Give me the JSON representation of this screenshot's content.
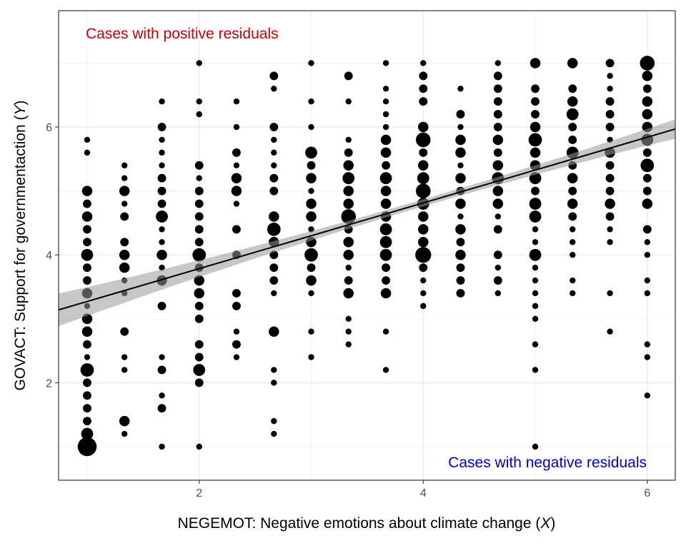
{
  "chart_data": {
    "type": "scatter",
    "title": "",
    "xlabel": {
      "prefix": "NEGEMOT: Negative emotions about climate change (",
      "var": "X",
      "suffix": ")"
    },
    "ylabel": {
      "prefix": "GOVACT: Support for governmentaction (",
      "var": "Y",
      "suffix": ")"
    },
    "xlim": [
      0.745,
      6.25
    ],
    "ylim": [
      0.475,
      7.82
    ],
    "x_ticks": [
      2,
      4,
      6
    ],
    "y_ticks": [
      2,
      4,
      6
    ],
    "x_tick_labels": [
      "2",
      "4",
      "6"
    ],
    "y_tick_labels": [
      "2",
      "4",
      "6"
    ],
    "grid": true,
    "point_size_encodes": "count",
    "point_color": "#000000",
    "regression_line": {
      "intercept": 2.757,
      "slope": 0.514,
      "color": "#000000",
      "confidence_band": true,
      "band_color": "#999999"
    },
    "annotations": [
      {
        "text": "Cases with positive residuals",
        "color": "#cc0000",
        "placement": "top-left"
      },
      {
        "text": "Cases with negative residuals",
        "color": "#0000cc",
        "placement": "bottom-right"
      }
    ],
    "columns": [
      {
        "x": 1,
        "points": [
          [
            5.8,
            1
          ],
          [
            5.6,
            1
          ],
          [
            5.0,
            3
          ],
          [
            4.8,
            2
          ],
          [
            4.6,
            3
          ],
          [
            4.4,
            2
          ],
          [
            4.2,
            2
          ],
          [
            4.0,
            4
          ],
          [
            3.8,
            2
          ],
          [
            3.6,
            2
          ],
          [
            3.4,
            3
          ],
          [
            3.2,
            1
          ],
          [
            3.0,
            3
          ],
          [
            2.8,
            3
          ],
          [
            2.6,
            2
          ],
          [
            2.4,
            1
          ],
          [
            2.2,
            5
          ],
          [
            2.0,
            2
          ],
          [
            1.8,
            2
          ],
          [
            1.6,
            2
          ],
          [
            1.4,
            2
          ],
          [
            1.2,
            4
          ],
          [
            1.0,
            10
          ]
        ]
      },
      {
        "x": 1.333,
        "points": [
          [
            5.4,
            1
          ],
          [
            5.2,
            1
          ],
          [
            5.0,
            3
          ],
          [
            4.8,
            1
          ],
          [
            4.6,
            2
          ],
          [
            4.2,
            2
          ],
          [
            4.0,
            3
          ],
          [
            3.8,
            3
          ],
          [
            3.6,
            1
          ],
          [
            3.4,
            1
          ],
          [
            2.8,
            2
          ],
          [
            2.4,
            1
          ],
          [
            2.2,
            1
          ],
          [
            1.4,
            3
          ],
          [
            1.2,
            1
          ]
        ]
      },
      {
        "x": 1.667,
        "points": [
          [
            6.4,
            1
          ],
          [
            6.0,
            2
          ],
          [
            5.8,
            1
          ],
          [
            5.6,
            1
          ],
          [
            5.4,
            1
          ],
          [
            5.2,
            2
          ],
          [
            5.0,
            2
          ],
          [
            4.8,
            2
          ],
          [
            4.6,
            4
          ],
          [
            4.4,
            1
          ],
          [
            4.2,
            1
          ],
          [
            4.0,
            3
          ],
          [
            3.8,
            1
          ],
          [
            3.6,
            3
          ],
          [
            3.2,
            2
          ],
          [
            2.4,
            1
          ],
          [
            2.2,
            2
          ],
          [
            1.8,
            1
          ],
          [
            1.6,
            2
          ],
          [
            1.0,
            1
          ]
        ]
      },
      {
        "x": 2,
        "points": [
          [
            7.0,
            1
          ],
          [
            6.4,
            1
          ],
          [
            6.2,
            1
          ],
          [
            5.4,
            2
          ],
          [
            5.2,
            1
          ],
          [
            5.0,
            2
          ],
          [
            4.8,
            2
          ],
          [
            4.6,
            2
          ],
          [
            4.4,
            2
          ],
          [
            4.2,
            2
          ],
          [
            4.0,
            5
          ],
          [
            3.8,
            2
          ],
          [
            3.6,
            3
          ],
          [
            3.4,
            3
          ],
          [
            3.2,
            2
          ],
          [
            3.0,
            2
          ],
          [
            2.6,
            2
          ],
          [
            2.4,
            2
          ],
          [
            2.2,
            4
          ],
          [
            2.0,
            2
          ],
          [
            1.0,
            1
          ]
        ]
      },
      {
        "x": 2.333,
        "points": [
          [
            6.4,
            1
          ],
          [
            6.0,
            1
          ],
          [
            5.6,
            2
          ],
          [
            5.4,
            1
          ],
          [
            5.2,
            3
          ],
          [
            5.0,
            3
          ],
          [
            4.8,
            1
          ],
          [
            4.4,
            2
          ],
          [
            4.0,
            2
          ],
          [
            3.4,
            2
          ],
          [
            3.2,
            2
          ],
          [
            2.8,
            1
          ],
          [
            2.6,
            2
          ],
          [
            2.4,
            1
          ]
        ]
      },
      {
        "x": 2.667,
        "points": [
          [
            6.8,
            2
          ],
          [
            6.6,
            1
          ],
          [
            6.0,
            2
          ],
          [
            5.8,
            1
          ],
          [
            5.6,
            1
          ],
          [
            5.4,
            1
          ],
          [
            5.2,
            2
          ],
          [
            5.0,
            2
          ],
          [
            4.6,
            3
          ],
          [
            4.4,
            5
          ],
          [
            4.2,
            3
          ],
          [
            4.0,
            2
          ],
          [
            3.8,
            2
          ],
          [
            3.6,
            2
          ],
          [
            3.4,
            1
          ],
          [
            2.8,
            3
          ],
          [
            2.2,
            1
          ],
          [
            2.0,
            1
          ],
          [
            1.4,
            1
          ],
          [
            1.2,
            1
          ]
        ]
      },
      {
        "x": 3,
        "points": [
          [
            7.0,
            1
          ],
          [
            6.4,
            1
          ],
          [
            6.0,
            1
          ],
          [
            5.6,
            4
          ],
          [
            5.4,
            2
          ],
          [
            5.2,
            3
          ],
          [
            5.0,
            1
          ],
          [
            4.8,
            3
          ],
          [
            4.6,
            3
          ],
          [
            4.4,
            1
          ],
          [
            4.2,
            3
          ],
          [
            4.0,
            5
          ],
          [
            3.8,
            2
          ],
          [
            3.6,
            3
          ],
          [
            3.4,
            1
          ],
          [
            2.8,
            1
          ],
          [
            2.4,
            1
          ]
        ]
      },
      {
        "x": 3.333,
        "points": [
          [
            6.8,
            2
          ],
          [
            6.4,
            1
          ],
          [
            5.8,
            1
          ],
          [
            5.6,
            2
          ],
          [
            5.4,
            3
          ],
          [
            5.2,
            4
          ],
          [
            5.0,
            3
          ],
          [
            4.8,
            3
          ],
          [
            4.6,
            6
          ],
          [
            4.4,
            2
          ],
          [
            4.2,
            3
          ],
          [
            4.0,
            3
          ],
          [
            3.8,
            1
          ],
          [
            3.6,
            2
          ],
          [
            3.4,
            3
          ],
          [
            3.0,
            1
          ],
          [
            2.8,
            1
          ],
          [
            2.6,
            1
          ]
        ]
      },
      {
        "x": 3.667,
        "points": [
          [
            7.0,
            1
          ],
          [
            6.6,
            1
          ],
          [
            6.4,
            1
          ],
          [
            6.2,
            1
          ],
          [
            6.0,
            1
          ],
          [
            5.8,
            3
          ],
          [
            5.6,
            3
          ],
          [
            5.4,
            2
          ],
          [
            5.2,
            4
          ],
          [
            5.0,
            3
          ],
          [
            4.8,
            3
          ],
          [
            4.6,
            3
          ],
          [
            4.4,
            4
          ],
          [
            4.2,
            4
          ],
          [
            4.0,
            4
          ],
          [
            3.8,
            2
          ],
          [
            3.6,
            2
          ],
          [
            3.4,
            3
          ],
          [
            2.8,
            1
          ],
          [
            2.2,
            1
          ]
        ]
      },
      {
        "x": 4,
        "points": [
          [
            7.0,
            1
          ],
          [
            6.8,
            2
          ],
          [
            6.6,
            2
          ],
          [
            6.4,
            2
          ],
          [
            6.0,
            3
          ],
          [
            5.8,
            6
          ],
          [
            5.6,
            2
          ],
          [
            5.4,
            3
          ],
          [
            5.2,
            4
          ],
          [
            5.0,
            6
          ],
          [
            4.8,
            4
          ],
          [
            4.6,
            3
          ],
          [
            4.4,
            3
          ],
          [
            4.2,
            3
          ],
          [
            4.0,
            7
          ],
          [
            3.8,
            2
          ],
          [
            3.6,
            1
          ],
          [
            3.4,
            1
          ],
          [
            3.2,
            1
          ]
        ]
      },
      {
        "x": 4.333,
        "points": [
          [
            6.6,
            1
          ],
          [
            6.2,
            2
          ],
          [
            6.0,
            1
          ],
          [
            5.8,
            3
          ],
          [
            5.6,
            3
          ],
          [
            5.4,
            1
          ],
          [
            5.2,
            3
          ],
          [
            5.0,
            2
          ],
          [
            4.8,
            3
          ],
          [
            4.6,
            1
          ],
          [
            4.4,
            3
          ],
          [
            4.2,
            2
          ],
          [
            4.0,
            3
          ],
          [
            3.8,
            2
          ],
          [
            3.6,
            2
          ],
          [
            3.4,
            2
          ]
        ]
      },
      {
        "x": 4.667,
        "points": [
          [
            7.0,
            1
          ],
          [
            6.8,
            2
          ],
          [
            6.6,
            2
          ],
          [
            6.4,
            2
          ],
          [
            6.2,
            2
          ],
          [
            6.0,
            2
          ],
          [
            5.8,
            3
          ],
          [
            5.6,
            2
          ],
          [
            5.4,
            3
          ],
          [
            5.2,
            4
          ],
          [
            5.0,
            3
          ],
          [
            4.8,
            3
          ],
          [
            4.6,
            1
          ],
          [
            4.4,
            2
          ],
          [
            4.0,
            2
          ],
          [
            3.8,
            1
          ],
          [
            3.6,
            2
          ],
          [
            3.4,
            1
          ]
        ]
      },
      {
        "x": 5,
        "points": [
          [
            7.0,
            3
          ],
          [
            6.6,
            2
          ],
          [
            6.4,
            2
          ],
          [
            6.2,
            2
          ],
          [
            6.0,
            3
          ],
          [
            5.8,
            5
          ],
          [
            5.6,
            3
          ],
          [
            5.4,
            3
          ],
          [
            5.2,
            4
          ],
          [
            5.0,
            2
          ],
          [
            4.8,
            4
          ],
          [
            4.6,
            4
          ],
          [
            4.4,
            1
          ],
          [
            4.2,
            1
          ],
          [
            4.0,
            4
          ],
          [
            3.8,
            1
          ],
          [
            3.6,
            1
          ],
          [
            3.4,
            1
          ],
          [
            3.2,
            1
          ],
          [
            3.0,
            1
          ],
          [
            2.6,
            1
          ],
          [
            2.2,
            1
          ],
          [
            1.0,
            1
          ]
        ]
      },
      {
        "x": 5.333,
        "points": [
          [
            7.0,
            3
          ],
          [
            6.6,
            2
          ],
          [
            6.4,
            3
          ],
          [
            6.2,
            4
          ],
          [
            6.0,
            2
          ],
          [
            5.8,
            2
          ],
          [
            5.6,
            4
          ],
          [
            5.4,
            2
          ],
          [
            5.2,
            3
          ],
          [
            5.0,
            2
          ],
          [
            4.8,
            3
          ],
          [
            4.6,
            2
          ],
          [
            4.4,
            1
          ],
          [
            4.2,
            1
          ],
          [
            4.0,
            1
          ],
          [
            3.6,
            1
          ],
          [
            3.4,
            1
          ]
        ]
      },
      {
        "x": 5.667,
        "points": [
          [
            7.0,
            2
          ],
          [
            6.8,
            1
          ],
          [
            6.6,
            1
          ],
          [
            6.4,
            2
          ],
          [
            6.2,
            2
          ],
          [
            6.0,
            2
          ],
          [
            5.8,
            1
          ],
          [
            5.6,
            3
          ],
          [
            5.4,
            2
          ],
          [
            5.2,
            2
          ],
          [
            5.0,
            2
          ],
          [
            4.8,
            3
          ],
          [
            4.6,
            2
          ],
          [
            4.4,
            1
          ],
          [
            4.2,
            1
          ],
          [
            3.4,
            1
          ],
          [
            2.8,
            1
          ]
        ]
      },
      {
        "x": 6,
        "points": [
          [
            7.0,
            6
          ],
          [
            6.8,
            3
          ],
          [
            6.6,
            2
          ],
          [
            6.4,
            3
          ],
          [
            6.2,
            3
          ],
          [
            6.0,
            3
          ],
          [
            5.8,
            4
          ],
          [
            5.6,
            2
          ],
          [
            5.4,
            5
          ],
          [
            5.2,
            2
          ],
          [
            5.0,
            2
          ],
          [
            4.8,
            3
          ],
          [
            4.4,
            2
          ],
          [
            4.2,
            1
          ],
          [
            4.0,
            1
          ],
          [
            3.6,
            1
          ],
          [
            3.4,
            1
          ],
          [
            2.6,
            1
          ],
          [
            2.4,
            1
          ],
          [
            1.8,
            1
          ]
        ]
      }
    ]
  }
}
